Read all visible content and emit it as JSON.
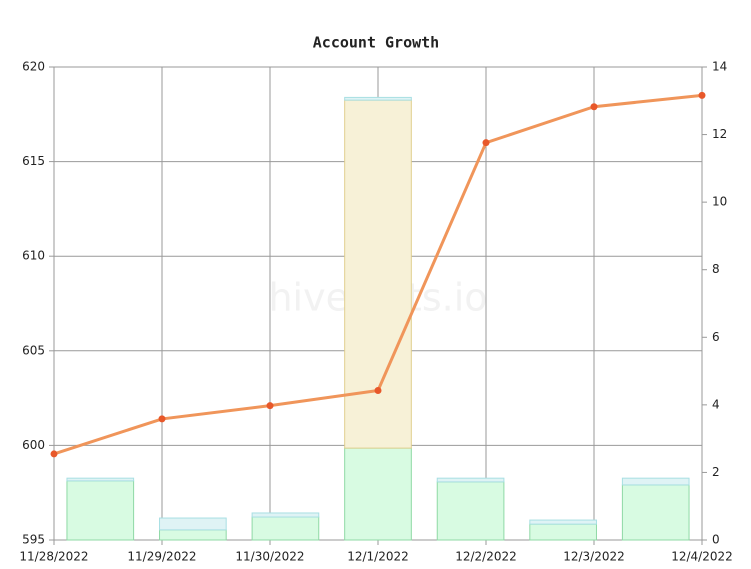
{
  "chart_data": {
    "type": "combo",
    "title": "Account Growth",
    "watermark": "hivestats.io",
    "categories": [
      "11/28/2022",
      "11/29/2022",
      "11/30/2022",
      "12/1/2022",
      "12/2/2022",
      "12/3/2022",
      "12/4/2022"
    ],
    "series": [
      {
        "type": "line",
        "axis": "y",
        "color": "#f0955a",
        "marker_color": "#e8582a",
        "values": [
          599.55,
          601.4,
          602.1,
          602.9,
          616.0,
          617.9,
          618.5
        ]
      },
      {
        "type": "bar",
        "axis": "y2",
        "color": "#d8fbe2",
        "edge_color": "#8fd9a5",
        "values": [
          1.75,
          0.3,
          0.68,
          2.72,
          1.72,
          0.47,
          1.63
        ]
      },
      {
        "type": "bar",
        "axis": "y2",
        "color": "#f7f1d7",
        "edge_color": "#e0cf8e",
        "values": [
          0,
          0,
          0,
          10.3,
          0,
          0,
          0
        ]
      },
      {
        "type": "bar",
        "axis": "y2",
        "color": "#dff3f5",
        "edge_color": "#a8dfe3",
        "values": [
          0.08,
          0.35,
          0.12,
          0.08,
          0.11,
          0.12,
          0.2
        ]
      }
    ],
    "ylim": [
      595,
      620
    ],
    "yticks": [
      595,
      600,
      605,
      610,
      615,
      620
    ],
    "y2lim": [
      0,
      14
    ],
    "y2ticks": [
      0,
      2,
      4,
      6,
      8,
      10,
      12,
      14
    ],
    "grid": true
  }
}
